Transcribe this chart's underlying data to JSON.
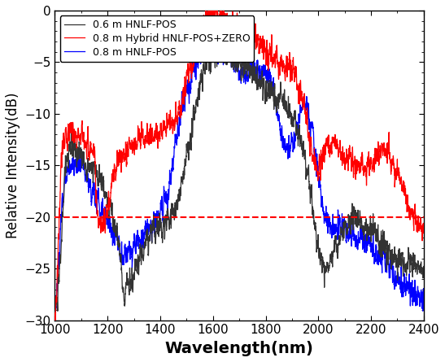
{
  "wavelength_start": 1000,
  "wavelength_end": 2400,
  "ylim": [
    -30,
    0
  ],
  "yticks": [
    0,
    -5,
    -10,
    -15,
    -20,
    -25,
    -30
  ],
  "xticks": [
    1000,
    1200,
    1400,
    1600,
    1800,
    2000,
    2200,
    2400
  ],
  "xlabel": "Wavelength(nm)",
  "ylabel": "Relative Intensity(dB)",
  "dashed_line_y": -20,
  "legend": [
    "0.6 m HNLF-POS",
    "0.8 m Hybrid HNLF-POS+ZERO",
    "0.8 m HNLF-POS"
  ],
  "colors": [
    "#333333",
    "#ff0000",
    "#0000ff"
  ],
  "dashed_color": "#ff0000",
  "linewidth": 0.9,
  "xlabel_fontsize": 14,
  "ylabel_fontsize": 12,
  "legend_fontsize": 9,
  "tick_fontsize": 11,
  "xlabel_fontweight": "bold"
}
